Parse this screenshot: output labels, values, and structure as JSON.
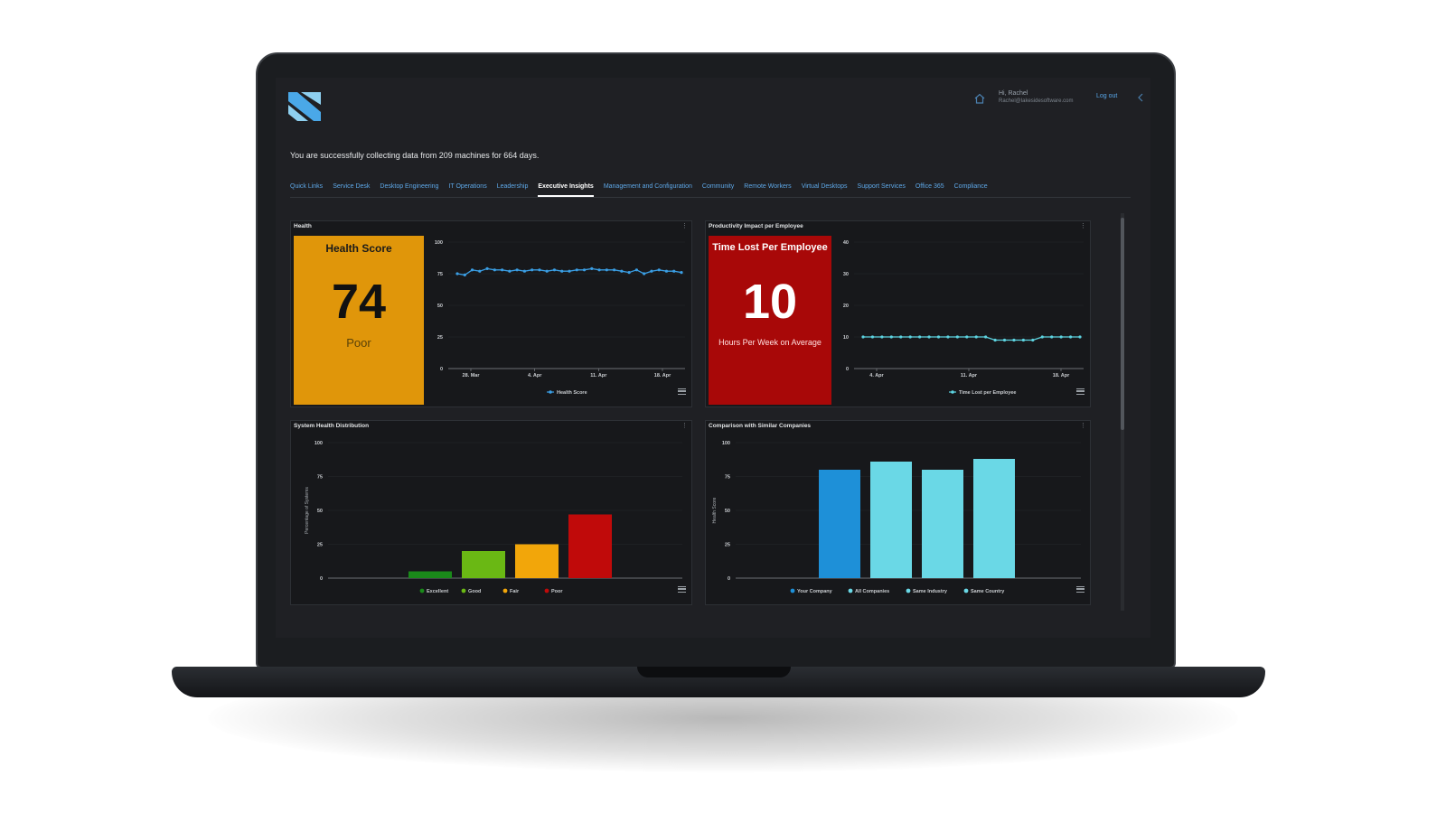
{
  "header": {
    "user_greeting": "Hi, Rachel",
    "user_email": "Rachel@lakesidesoftware.com",
    "logout_label": "Log out"
  },
  "status_message": "You are successfully collecting data from 209 machines for 664 days.",
  "nav": {
    "tabs": [
      {
        "label": "Quick Links",
        "active": false
      },
      {
        "label": "Service Desk",
        "active": false
      },
      {
        "label": "Desktop Engineering",
        "active": false
      },
      {
        "label": "IT Operations",
        "active": false
      },
      {
        "label": "Leadership",
        "active": false
      },
      {
        "label": "Executive Insights",
        "active": true
      },
      {
        "label": "Management and Configuration",
        "active": false
      },
      {
        "label": "Community",
        "active": false
      },
      {
        "label": "Remote Workers",
        "active": false
      },
      {
        "label": "Virtual Desktops",
        "active": false
      },
      {
        "label": "Support Services",
        "active": false
      },
      {
        "label": "Office 365",
        "active": false
      },
      {
        "label": "Compliance",
        "active": false
      }
    ]
  },
  "panels": {
    "health": {
      "title": "Health",
      "kpi": {
        "title": "Health Score",
        "value": "74",
        "subtitle": "Poor",
        "color": "#e0960a"
      }
    },
    "productivity": {
      "title": "Productivity Impact per Employee",
      "kpi": {
        "title": "Time Lost Per Employee",
        "value": "10",
        "subtitle": "Hours Per Week on Average",
        "color": "#a80808"
      }
    },
    "distribution": {
      "title": "System Health Distribution"
    },
    "comparison": {
      "title": "Comparison with Similar Companies"
    }
  },
  "chart_data": [
    {
      "type": "line",
      "y_ticks": [
        "100",
        "75",
        "50",
        "25",
        "0"
      ],
      "ylim": [
        0,
        100
      ],
      "x_ticks": [
        "28. Mar",
        "4. Apr",
        "11. Apr",
        "18. Apr"
      ],
      "series": [
        {
          "name": "Health Score",
          "color": "#3a9ee4",
          "values": [
            75,
            74,
            78,
            77,
            79,
            78,
            78,
            77,
            78,
            77,
            78,
            78,
            77,
            78,
            77,
            77,
            78,
            78,
            79,
            78,
            78,
            78,
            77,
            76,
            78,
            75,
            77,
            78,
            77,
            77,
            76
          ]
        }
      ],
      "legend": "bottom-center"
    },
    {
      "type": "line",
      "y_ticks": [
        "40",
        "30",
        "20",
        "10",
        "0"
      ],
      "ylim": [
        0,
        40
      ],
      "x_ticks": [
        "4. Apr",
        "11. Apr",
        "18. Apr"
      ],
      "series": [
        {
          "name": "Time Lost per Employee",
          "color": "#5dd3e0",
          "values": [
            10,
            10,
            10,
            10,
            10,
            10,
            10,
            10,
            10,
            10,
            10,
            10,
            10,
            10,
            9,
            9,
            9,
            9,
            9,
            10,
            10,
            10,
            10,
            10
          ]
        }
      ],
      "legend": "bottom-center"
    },
    {
      "type": "bar",
      "ylabel": "Percentage of Systems",
      "y_ticks": [
        "100",
        "75",
        "50",
        "25",
        "0"
      ],
      "ylim": [
        0,
        100
      ],
      "categories": [
        "Excellent",
        "Good",
        "Fair",
        "Poor"
      ],
      "values": [
        5,
        20,
        25,
        47
      ],
      "colors": [
        "#1a8a1a",
        "#6ab814",
        "#f2a60a",
        "#c00a0a"
      ],
      "legend": "bottom-center"
    },
    {
      "type": "bar",
      "ylabel": "Health Score",
      "y_ticks": [
        "100",
        "75",
        "50",
        "25",
        "0"
      ],
      "ylim": [
        0,
        100
      ],
      "categories": [
        "Your Company",
        "All Companies",
        "Same Industry",
        "Same Country"
      ],
      "values": [
        80,
        86,
        80,
        88
      ],
      "colors": [
        "#1e90d8",
        "#6ad8e6",
        "#6ad8e6",
        "#6ad8e6"
      ],
      "legend": "bottom-center"
    }
  ]
}
